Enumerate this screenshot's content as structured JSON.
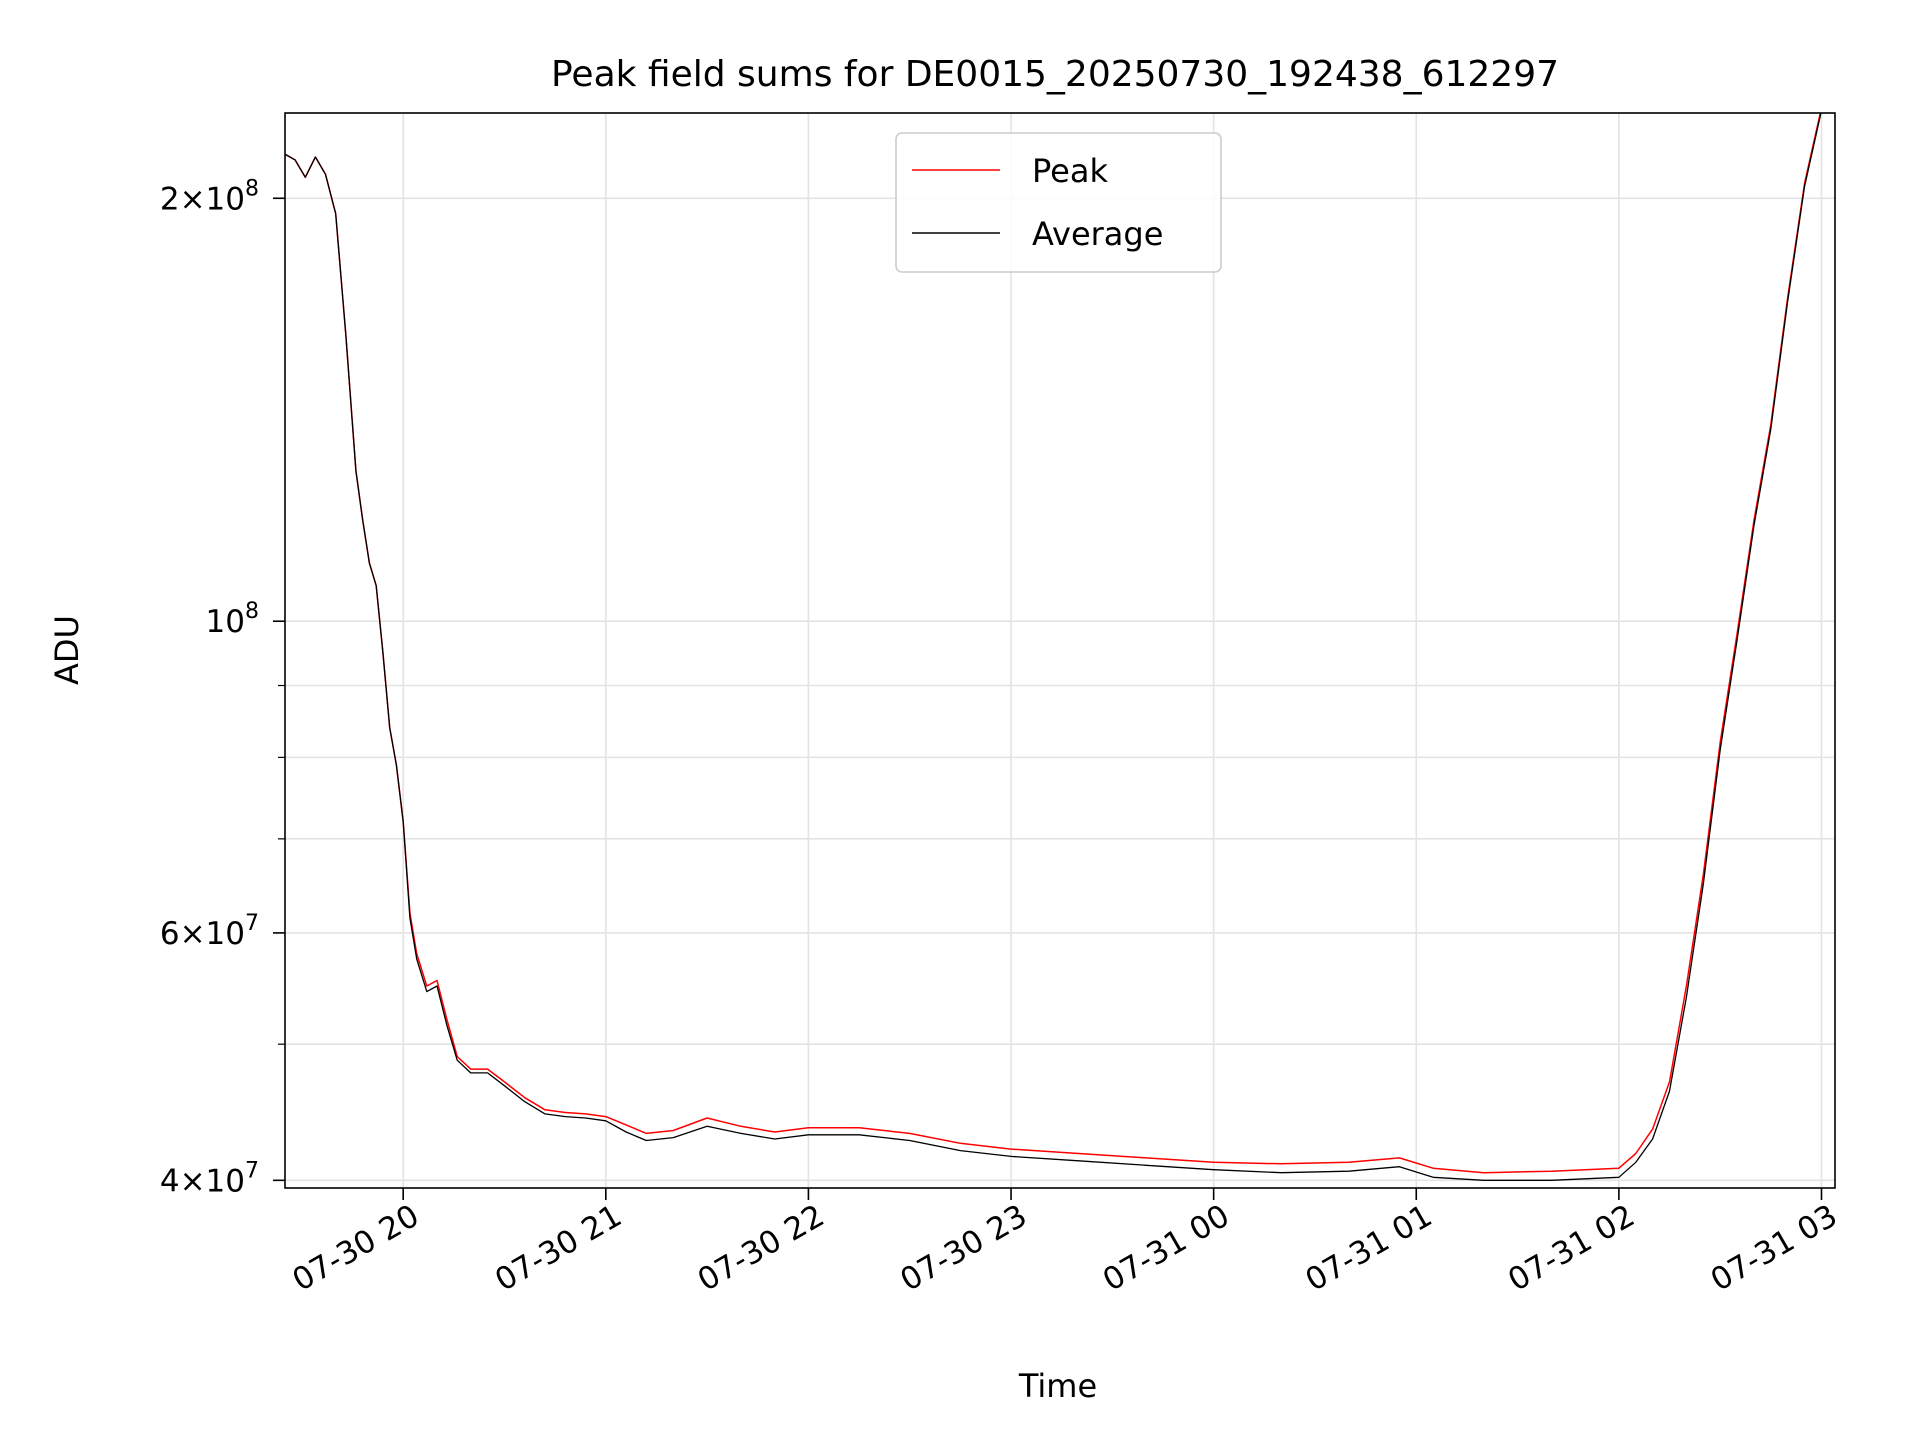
{
  "chart_data": {
    "type": "line",
    "title": "Peak field sums for DE0015_20250730_192438_612297",
    "xlabel": "Time",
    "ylabel": "ADU",
    "yscale": "log",
    "grid": true,
    "legend": {
      "placement": "top-center"
    },
    "xlim": [
      "2025-07-30 19:25",
      "2025-07-31 03:04"
    ],
    "ylim": [
      39500000,
      230000000
    ],
    "x_ticks": [
      {
        "t": "2025-07-30 20:00",
        "label": "07-30 20"
      },
      {
        "t": "2025-07-30 21:00",
        "label": "07-30 21"
      },
      {
        "t": "2025-07-30 22:00",
        "label": "07-30 22"
      },
      {
        "t": "2025-07-30 23:00",
        "label": "07-30 23"
      },
      {
        "t": "2025-07-31 00:00",
        "label": "07-31 00"
      },
      {
        "t": "2025-07-31 01:00",
        "label": "07-31 01"
      },
      {
        "t": "2025-07-31 02:00",
        "label": "07-31 02"
      },
      {
        "t": "2025-07-31 03:00",
        "label": "07-31 03"
      }
    ],
    "y_ticks_major": [
      {
        "v": 40000000,
        "label_base": "4×10",
        "label_exp": "7"
      },
      {
        "v": 60000000,
        "label_base": "6×10",
        "label_exp": "7"
      },
      {
        "v": 100000000,
        "label_base": "10",
        "label_exp": "8"
      },
      {
        "v": 200000000,
        "label_base": "2×10",
        "label_exp": "8"
      }
    ],
    "y_ticks_minor": [
      50000000,
      70000000,
      80000000,
      90000000
    ],
    "series": [
      {
        "name": "Peak",
        "color": "#ff0000",
        "x": [
          "2025-07-30 19:25",
          "2025-07-30 19:28",
          "2025-07-30 19:31",
          "2025-07-30 19:34",
          "2025-07-30 19:37",
          "2025-07-30 19:40",
          "2025-07-30 19:43",
          "2025-07-30 19:46",
          "2025-07-30 19:48",
          "2025-07-30 19:50",
          "2025-07-30 19:52",
          "2025-07-30 19:54",
          "2025-07-30 19:56",
          "2025-07-30 19:58",
          "2025-07-30 20:00",
          "2025-07-30 20:02",
          "2025-07-30 20:04",
          "2025-07-30 20:07",
          "2025-07-30 20:10",
          "2025-07-30 20:13",
          "2025-07-30 20:16",
          "2025-07-30 20:20",
          "2025-07-30 20:25",
          "2025-07-30 20:30",
          "2025-07-30 20:36",
          "2025-07-30 20:42",
          "2025-07-30 20:48",
          "2025-07-30 20:54",
          "2025-07-30 21:00",
          "2025-07-30 21:06",
          "2025-07-30 21:12",
          "2025-07-30 21:20",
          "2025-07-30 21:30",
          "2025-07-30 21:40",
          "2025-07-30 21:50",
          "2025-07-30 22:00",
          "2025-07-30 22:15",
          "2025-07-30 22:30",
          "2025-07-30 22:45",
          "2025-07-30 23:00",
          "2025-07-30 23:20",
          "2025-07-30 23:40",
          "2025-07-31 00:00",
          "2025-07-31 00:20",
          "2025-07-31 00:40",
          "2025-07-31 00:55",
          "2025-07-31 01:05",
          "2025-07-31 01:20",
          "2025-07-31 01:40",
          "2025-07-31 02:00",
          "2025-07-31 02:05",
          "2025-07-31 02:10",
          "2025-07-31 02:15",
          "2025-07-31 02:20",
          "2025-07-31 02:25",
          "2025-07-31 02:30",
          "2025-07-31 02:35",
          "2025-07-31 02:40",
          "2025-07-31 02:45",
          "2025-07-31 02:50",
          "2025-07-31 02:55",
          "2025-07-31 03:00"
        ],
        "y": [
          215000000,
          213000000,
          207000000,
          214000000,
          208000000,
          195000000,
          160000000,
          128000000,
          118000000,
          110000000,
          106000000,
          95000000,
          84000000,
          79000000,
          72000000,
          62000000,
          58000000,
          55000000,
          55500000,
          52000000,
          49000000,
          48000000,
          48000000,
          47000000,
          45800000,
          44900000,
          44700000,
          44600000,
          44400000,
          43800000,
          43200000,
          43400000,
          44300000,
          43700000,
          43300000,
          43600000,
          43600000,
          43200000,
          42500000,
          42100000,
          41800000,
          41500000,
          41200000,
          41100000,
          41200000,
          41500000,
          40800000,
          40500000,
          40600000,
          40800000,
          41800000,
          43500000,
          47000000,
          55000000,
          66000000,
          82000000,
          98000000,
          118000000,
          138000000,
          170000000,
          205000000,
          232000000
        ]
      },
      {
        "name": "Average",
        "color": "#000000",
        "x": [
          "2025-07-30 19:25",
          "2025-07-30 19:28",
          "2025-07-30 19:31",
          "2025-07-30 19:34",
          "2025-07-30 19:37",
          "2025-07-30 19:40",
          "2025-07-30 19:43",
          "2025-07-30 19:46",
          "2025-07-30 19:48",
          "2025-07-30 19:50",
          "2025-07-30 19:52",
          "2025-07-30 19:54",
          "2025-07-30 19:56",
          "2025-07-30 19:58",
          "2025-07-30 20:00",
          "2025-07-30 20:02",
          "2025-07-30 20:04",
          "2025-07-30 20:07",
          "2025-07-30 20:10",
          "2025-07-30 20:13",
          "2025-07-30 20:16",
          "2025-07-30 20:20",
          "2025-07-30 20:25",
          "2025-07-30 20:30",
          "2025-07-30 20:36",
          "2025-07-30 20:42",
          "2025-07-30 20:48",
          "2025-07-30 20:54",
          "2025-07-30 21:00",
          "2025-07-30 21:06",
          "2025-07-30 21:12",
          "2025-07-30 21:20",
          "2025-07-30 21:30",
          "2025-07-30 21:40",
          "2025-07-30 21:50",
          "2025-07-30 22:00",
          "2025-07-30 22:15",
          "2025-07-30 22:30",
          "2025-07-30 22:45",
          "2025-07-30 23:00",
          "2025-07-30 23:20",
          "2025-07-30 23:40",
          "2025-07-31 00:00",
          "2025-07-31 00:20",
          "2025-07-31 00:40",
          "2025-07-31 00:55",
          "2025-07-31 01:05",
          "2025-07-31 01:20",
          "2025-07-31 01:40",
          "2025-07-31 02:00",
          "2025-07-31 02:05",
          "2025-07-31 02:10",
          "2025-07-31 02:15",
          "2025-07-31 02:20",
          "2025-07-31 02:25",
          "2025-07-31 02:30",
          "2025-07-31 02:35",
          "2025-07-31 02:40",
          "2025-07-31 02:45",
          "2025-07-31 02:50",
          "2025-07-31 02:55",
          "2025-07-31 03:00"
        ],
        "y": [
          215000000,
          213000000,
          207000000,
          214000000,
          208000000,
          195000000,
          160000000,
          128000000,
          118000000,
          110000000,
          106000000,
          95000000,
          84000000,
          79000000,
          72000000,
          61500000,
          57500000,
          54500000,
          55000000,
          51500000,
          48700000,
          47700000,
          47700000,
          46700000,
          45500000,
          44600000,
          44400000,
          44300000,
          44100000,
          43300000,
          42700000,
          42900000,
          43700000,
          43200000,
          42800000,
          43100000,
          43100000,
          42700000,
          42000000,
          41600000,
          41300000,
          41000000,
          40700000,
          40500000,
          40600000,
          40900000,
          40200000,
          40000000,
          40000000,
          40200000,
          41200000,
          42800000,
          46300000,
          54000000,
          65000000,
          81000000,
          97000000,
          117000000,
          137000000,
          169000000,
          204000000,
          231000000
        ]
      }
    ]
  }
}
